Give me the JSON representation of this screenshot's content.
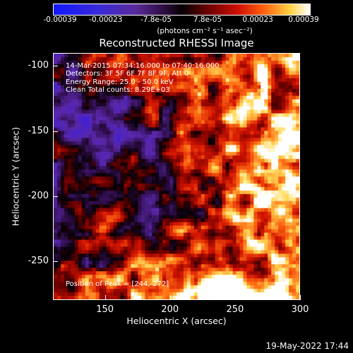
{
  "colorbar": {
    "ticks": [
      {
        "label": "-0.00039",
        "value": -0.00039
      },
      {
        "label": "-0.00023",
        "value": -0.00023
      },
      {
        "label": "-7.8e-05",
        "value": -7.8e-05
      },
      {
        "label": "7.8e-05",
        "value": 7.8e-05
      },
      {
        "label": "0.00023",
        "value": 0.00023
      },
      {
        "label": "0.00039",
        "value": 0.00039
      }
    ],
    "unit": "(photons cm⁻² s⁻¹ asec⁻²)",
    "range": [
      -0.00039,
      0.00039
    ]
  },
  "title": "Reconstructed RHESSI Image",
  "annotations": {
    "time": "14-Mar-2015 07:34:16.000 to 07:40:16.000",
    "detectors": "Detectors: 3F 5F 6F 7F 8F 9F, Att 0",
    "energy": "Energy Range: 25.0 - 50.0 keV",
    "clean": "Clean    Total counts: 8.29E+03",
    "peak": "Position of Peak = [244,-272]"
  },
  "axes": {
    "xlabel": "Heliocentric X (arcsec)",
    "ylabel": "Heliocentric Y (arcsec)",
    "xlim": [
      110,
      300
    ],
    "ylim": [
      -280,
      -90
    ],
    "xticks": [
      {
        "label": "150",
        "value": 150
      },
      {
        "label": "200",
        "value": 200
      },
      {
        "label": "250",
        "value": 250
      },
      {
        "label": "300",
        "value": 300
      }
    ],
    "yticks": [
      {
        "label": "-100",
        "value": -100
      },
      {
        "label": "-150",
        "value": -150
      },
      {
        "label": "-200",
        "value": -200
      },
      {
        "label": "-250",
        "value": -250
      }
    ]
  },
  "chart_data": {
    "type": "heatmap",
    "title": "Reconstructed RHESSI Image",
    "xlabel": "Heliocentric X (arcsec)",
    "ylabel": "Heliocentric Y (arcsec)",
    "xlim": [
      110,
      300
    ],
    "ylim": [
      -280,
      -90
    ],
    "colormap": "RHESSI blue-purple-red-yellow-white",
    "peak_position": [
      244,
      -272
    ]
  },
  "footer": {
    "date": "19-May-2022 17:44"
  }
}
